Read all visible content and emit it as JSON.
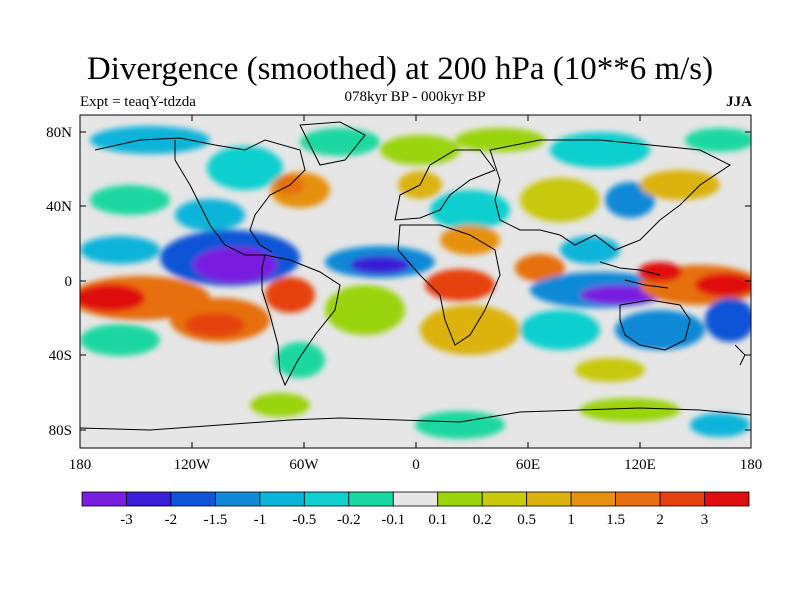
{
  "title": "Divergence (smoothed) at 200 hPa (10**6 m/s)",
  "experiment": "Expt = teaqY-tdzda",
  "period": "078kyr BP - 000kyr BP",
  "season": "JJA",
  "lat_ticks": [
    "80N",
    "40N",
    "0",
    "40S",
    "80S"
  ],
  "lon_ticks": [
    "180",
    "120W",
    "60W",
    "0",
    "60E",
    "120E",
    "180"
  ],
  "colorbar": {
    "colors": [
      "#7a1fe0",
      "#3a1fd6",
      "#0f55d6",
      "#1189d6",
      "#0bb4d9",
      "#0fcfcf",
      "#1ad8a0",
      "#e6e6e6",
      "#9ad40a",
      "#c8c80f",
      "#dcb20f",
      "#e6910f",
      "#e6700f",
      "#e6420f",
      "#e00f0f"
    ],
    "labels": [
      "-3",
      "-2",
      "-1.5",
      "-1",
      "-0.5",
      "-0.2",
      "-0.1",
      "0.1",
      "0.2",
      "0.5",
      "1",
      "1.5",
      "2",
      "3"
    ]
  }
}
